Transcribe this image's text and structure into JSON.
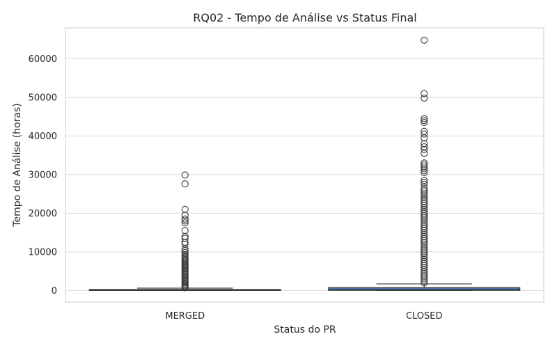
{
  "chart_data": {
    "type": "box",
    "title": "RQ02 - Tempo de Análise vs Status Final",
    "xlabel": "Status do PR",
    "ylabel": "Tempo de Análise (horas)",
    "categories": [
      "MERGED",
      "CLOSED"
    ],
    "ylim": [
      -3000,
      68000
    ],
    "yticks": [
      0,
      10000,
      20000,
      30000,
      40000,
      50000,
      60000
    ],
    "grid": true,
    "colors": {
      "box": "#4c72b0",
      "line": "#3a3a3a",
      "grid": "#d9d9d9",
      "axes": "#cccccc"
    },
    "boxes": [
      {
        "category": "MERGED",
        "q1": 20,
        "median": 60,
        "q3": 250,
        "whisker_low": 0,
        "whisker_high": 600,
        "outliers": [
          29900,
          27600,
          21000,
          19500,
          18500,
          18000,
          17500,
          15500,
          14000,
          13500,
          12500,
          12000,
          10800,
          10300,
          9800,
          9300,
          9000,
          8600,
          8300,
          8000,
          7700,
          7400,
          7100,
          6800,
          6500,
          6200,
          5900,
          5600,
          5300,
          5000,
          4700,
          4400,
          4100,
          3800,
          3500,
          3200,
          2900,
          2600,
          2300,
          2000,
          1700,
          1400,
          1100,
          900,
          700
        ]
      },
      {
        "category": "CLOSED",
        "q1": 30,
        "median": 250,
        "q3": 750,
        "whisker_low": 0,
        "whisker_high": 1700,
        "outliers": [
          64800,
          51000,
          49800,
          44500,
          44000,
          43500,
          41200,
          40500,
          39500,
          38000,
          37200,
          36500,
          35500,
          33000,
          32500,
          32000,
          31500,
          31000,
          30500,
          28500,
          28000,
          27500,
          26500,
          26000,
          25500,
          25000,
          24500,
          24000,
          23500,
          23000,
          22500,
          22000,
          21500,
          21000,
          20500,
          20000,
          19500,
          19000,
          18500,
          18000,
          17500,
          17000,
          16500,
          16000,
          15500,
          15000,
          14500,
          14000,
          13500,
          13000,
          12500,
          12000,
          11500,
          11000,
          10500,
          10000,
          9500,
          9000,
          8500,
          8000,
          7500,
          7000,
          6500,
          6000,
          5500,
          5000,
          4500,
          4000,
          3500,
          3000,
          2500,
          2000
        ]
      }
    ]
  }
}
